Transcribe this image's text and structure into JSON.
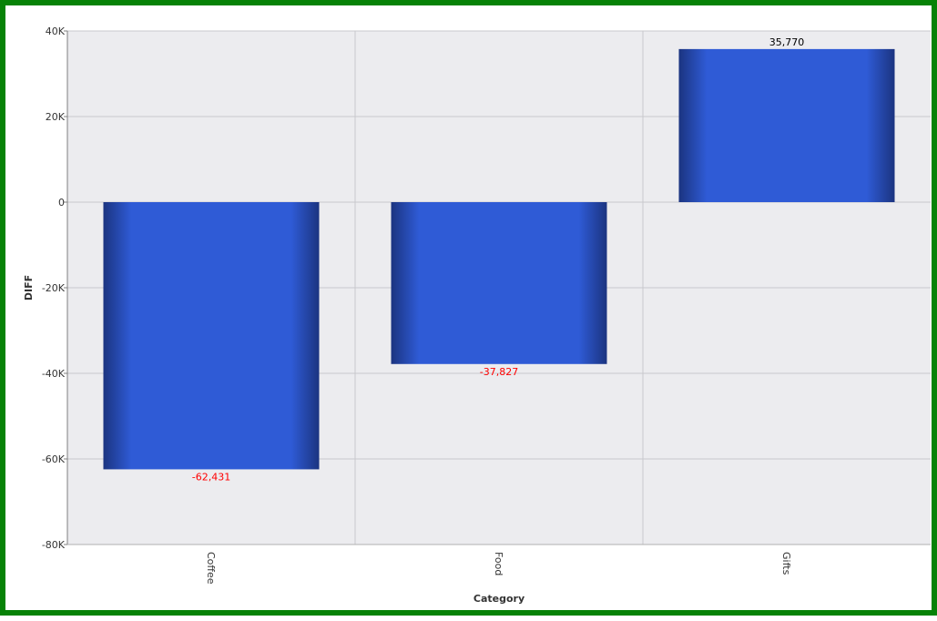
{
  "chart_data": {
    "type": "bar",
    "categories": [
      "Coffee",
      "Food",
      "Gifts"
    ],
    "values": [
      -62431,
      -37827,
      35770
    ],
    "data_labels": [
      "-62,431",
      "-37,827",
      "35,770"
    ],
    "title": "",
    "xlabel": "Category",
    "ylabel": "DIFF",
    "ylim": [
      -80000,
      40000
    ],
    "yticks": [
      40000,
      20000,
      0,
      -20000,
      -40000,
      -60000,
      -80000
    ],
    "ytick_labels": [
      "40K",
      "20K",
      "0",
      "-20K",
      "-40K",
      "-60K",
      "-80K"
    ],
    "grid": true,
    "legend": "none",
    "colors": {
      "bar": "#2f5bd6",
      "bar_edge": "#1c3580",
      "positive_label": "#000000",
      "negative_label": "#ff0000",
      "plot_background": "#ececef",
      "gridline": "#c8c8cc",
      "frame_border": "#078207"
    }
  }
}
